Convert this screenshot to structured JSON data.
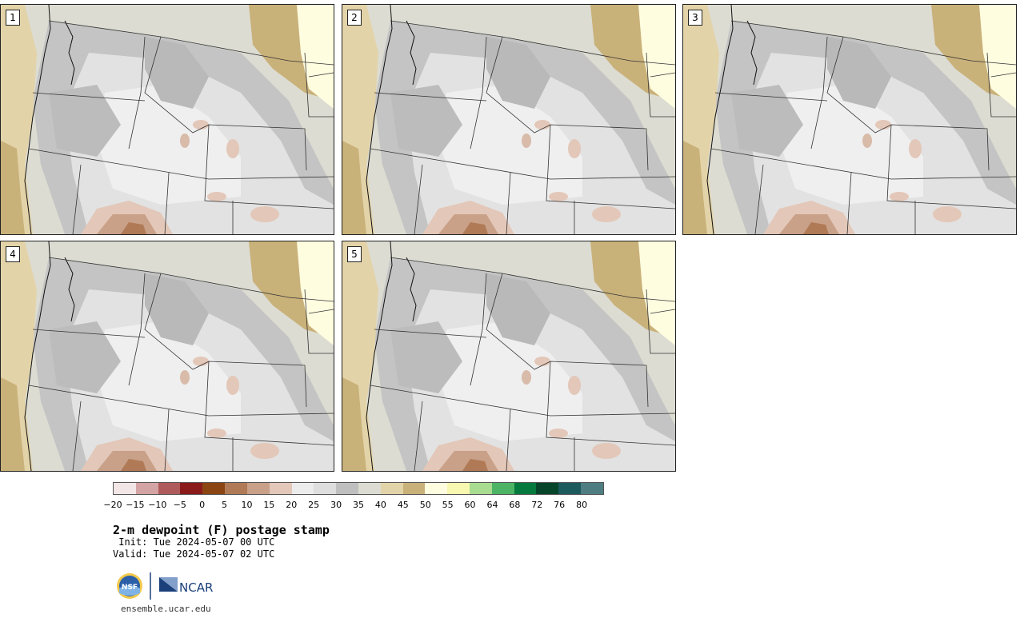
{
  "product": {
    "title": "2-m dewpoint (F) postage stamp",
    "init": " Init: Tue 2024-05-07 00 UTC",
    "valid": "Valid: Tue 2024-05-07 02 UTC",
    "website": "ensemble.ucar.edu"
  },
  "panels": [
    {
      "label": "1"
    },
    {
      "label": "2"
    },
    {
      "label": "3"
    },
    {
      "label": "4"
    },
    {
      "label": "5"
    }
  ],
  "colorbar": {
    "colors": [
      "#f2e6e6",
      "#d4a3a3",
      "#b05b5b",
      "#8b1a1a",
      "#8b4513",
      "#b07a56",
      "#c9a088",
      "#e3c7b8",
      "#ececec",
      "#dedede",
      "#bfbfbf",
      "#dcdcd2",
      "#e3d3a8",
      "#c9b17a",
      "#fffde0",
      "#f8f8b0",
      "#a8dc90",
      "#4cb464",
      "#067a3e",
      "#06452a",
      "#1c5a5e",
      "#4e7e82"
    ],
    "tick_labels": [
      "−20",
      "−15",
      "−10",
      "−5",
      "0",
      "5",
      "10",
      "15",
      "20",
      "25",
      "30",
      "35",
      "40",
      "45",
      "50",
      "55",
      "60",
      "64",
      "68",
      "72",
      "76",
      "80"
    ]
  },
  "logos": {
    "nsf": "NSF",
    "ncar": "NCAR"
  }
}
